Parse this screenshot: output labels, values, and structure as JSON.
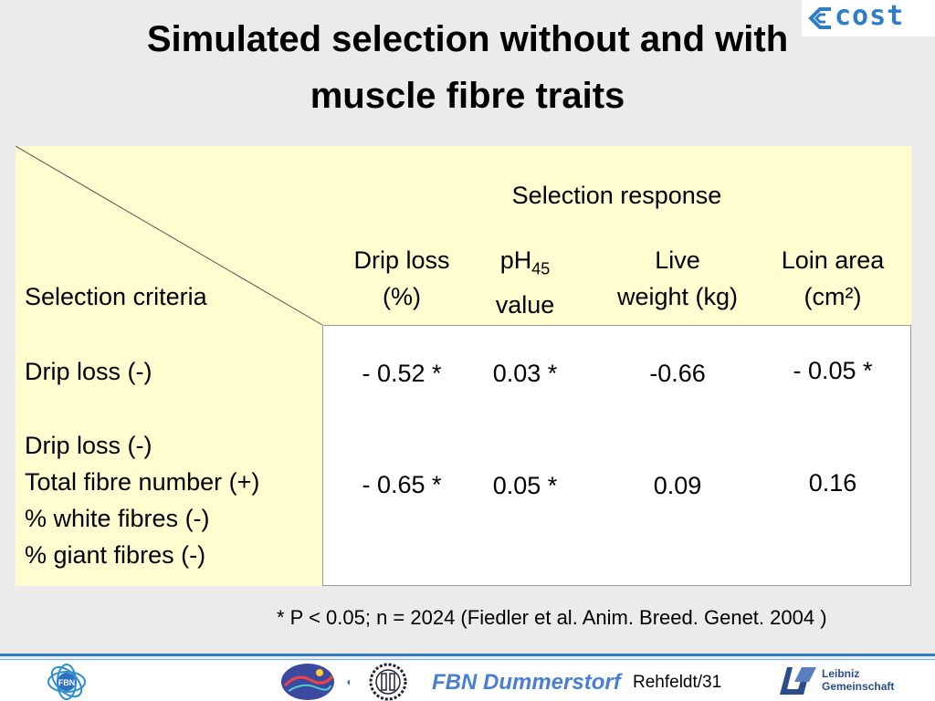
{
  "slide": {
    "title_line1": "Simulated selection without and with",
    "title_line2": "muscle fibre traits",
    "cost_logo_text": "cost"
  },
  "table": {
    "group_header": "Selection response",
    "row_header": "Selection criteria",
    "columns": [
      {
        "line1": "Drip loss",
        "line2": "(%)"
      },
      {
        "line1": "pH",
        "line1_sub": "45",
        "line2": "value"
      },
      {
        "line1": "Live",
        "line2": "weight (kg)"
      },
      {
        "line1": "Loin area",
        "line2": "(cm²)"
      }
    ],
    "rows": [
      {
        "criteria": [
          "Drip loss (-)"
        ],
        "values": [
          "- 0.52 *",
          "0.03 *",
          "-0.66",
          "- 0.05 *"
        ]
      },
      {
        "criteria": [
          "Drip loss (-)",
          "Total fibre number (+)",
          "% white fibres (-)",
          "% giant fibres (-)"
        ],
        "values": [
          "- 0.65 *",
          "0.05 *",
          "0.09",
          "0.16"
        ]
      }
    ]
  },
  "footnote": "* P < 0.05; n = 2024 (Fiedler et al. Anim. Breed. Genet. 2004 )",
  "footer": {
    "fbn_label": "FBN",
    "institute": "FBN Dummerstorf",
    "page_ref": "Rehfeldt/31",
    "leibniz_text": "Leibniz\nGemeinschaft"
  },
  "colors": {
    "header_fill": "#fffdd0",
    "accent_blue": "#2f7dc4",
    "background": "#ebebeb"
  }
}
